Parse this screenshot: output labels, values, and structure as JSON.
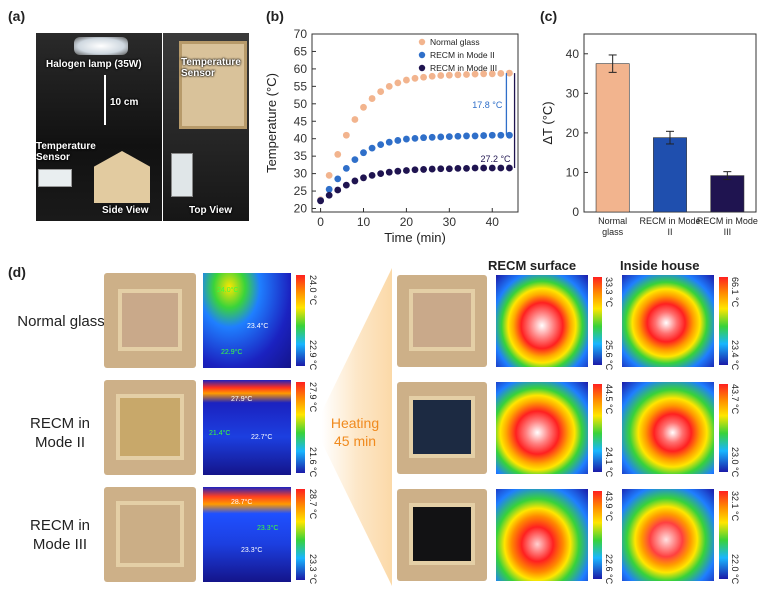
{
  "panel_a": {
    "label": "(a)",
    "lamp_label": "Halogen lamp (35W)",
    "distance_label": "10 cm",
    "sensor_label_side": "Temperature Sensor",
    "sensor_label_top": "Temperature Sensor",
    "side_view_label": "Side View",
    "top_view_label": "Top View"
  },
  "panel_b": {
    "label": "(b)",
    "annotation_1": "17.8 °C",
    "annotation_2": "27.2 °C"
  },
  "panel_c": {
    "label": "(c)"
  },
  "panel_d": {
    "label": "(d)",
    "row_labels": [
      "Normal glass",
      "RECM in Mode II",
      "RECM in Mode III"
    ],
    "heating_label_1": "Heating",
    "heating_label_2": "45 min",
    "col_header_surface": "RECM surface",
    "col_header_inside": "Inside house",
    "before_scales": [
      [
        "24.0 °C",
        "22.9 °C"
      ],
      [
        "27.9 °C",
        "21.6 °C"
      ],
      [
        "28.7 °C",
        "23.3 °C"
      ]
    ],
    "surface_scales": [
      [
        "33.3 °C",
        "25.6 °C"
      ],
      [
        "44.5 °C",
        "24.1 °C"
      ],
      [
        "43.9 °C",
        "22.6 °C"
      ]
    ],
    "inside_scales": [
      [
        "66.1 °C",
        "23.4 °C"
      ],
      [
        "43.7 °C",
        "23.0 °C"
      ],
      [
        "32.1 °C",
        "22.0 °C"
      ]
    ],
    "before_spots": [
      [
        "24.0°C",
        "23.4°C",
        "22.9°C"
      ],
      [
        "27.9°C",
        "21.4°C",
        "22.7°C"
      ],
      [
        "28.7°C",
        "23.3°C",
        "23.3°C"
      ]
    ]
  },
  "chart_data": [
    {
      "type": "scatter",
      "xlabel": "Time (min)",
      "ylabel": "Temperature (°C)",
      "xlim": [
        -2,
        46
      ],
      "ylim": [
        19,
        70
      ],
      "xticks": [
        0,
        10,
        20,
        30,
        40
      ],
      "yticks": [
        20,
        25,
        30,
        35,
        40,
        45,
        50,
        55,
        60,
        65,
        70
      ],
      "legend_position": "top-right",
      "series": [
        {
          "name": "Normal glass",
          "color": "#f2b48e",
          "x": [
            0,
            2,
            4,
            6,
            8,
            10,
            12,
            14,
            16,
            18,
            20,
            22,
            24,
            26,
            28,
            30,
            32,
            34,
            36,
            38,
            40,
            42,
            44
          ],
          "y": [
            22.5,
            29.5,
            35.5,
            41,
            45.5,
            49,
            51.5,
            53.5,
            55,
            56,
            56.8,
            57.3,
            57.6,
            57.9,
            58.1,
            58.2,
            58.3,
            58.4,
            58.5,
            58.6,
            58.6,
            58.7,
            58.8
          ]
        },
        {
          "name": "RECM in Mode II",
          "color": "#2f6fc9",
          "x": [
            0,
            2,
            4,
            6,
            8,
            10,
            12,
            14,
            16,
            18,
            20,
            22,
            24,
            26,
            28,
            30,
            32,
            34,
            36,
            38,
            40,
            42,
            44
          ],
          "y": [
            22.3,
            25.5,
            28.5,
            31.5,
            34,
            36,
            37.3,
            38.3,
            39,
            39.5,
            39.9,
            40.1,
            40.3,
            40.4,
            40.5,
            40.6,
            40.7,
            40.8,
            40.8,
            40.9,
            41,
            41,
            41
          ]
        },
        {
          "name": "RECM in Mode III",
          "color": "#1f1450",
          "x": [
            0,
            2,
            4,
            6,
            8,
            10,
            12,
            14,
            16,
            18,
            20,
            22,
            24,
            26,
            28,
            30,
            32,
            34,
            36,
            38,
            40,
            42,
            44
          ],
          "y": [
            22.2,
            23.8,
            25.3,
            26.7,
            27.9,
            28.8,
            29.5,
            30,
            30.4,
            30.7,
            30.9,
            31.1,
            31.2,
            31.3,
            31.4,
            31.4,
            31.5,
            31.5,
            31.6,
            31.6,
            31.6,
            31.6,
            31.6
          ]
        }
      ]
    },
    {
      "type": "bar",
      "ylabel": "ΔT (°C)",
      "ylim": [
        0,
        45
      ],
      "yticks": [
        0,
        10,
        20,
        30,
        40
      ],
      "categories": [
        "Normal glass",
        "RECM in Mode II",
        "RECM in Mode III"
      ],
      "values": [
        37.5,
        18.8,
        9.2
      ],
      "errors": [
        2.2,
        1.6,
        1.0
      ],
      "colors": [
        "#f2b48e",
        "#1f4fae",
        "#1f1450"
      ]
    }
  ]
}
